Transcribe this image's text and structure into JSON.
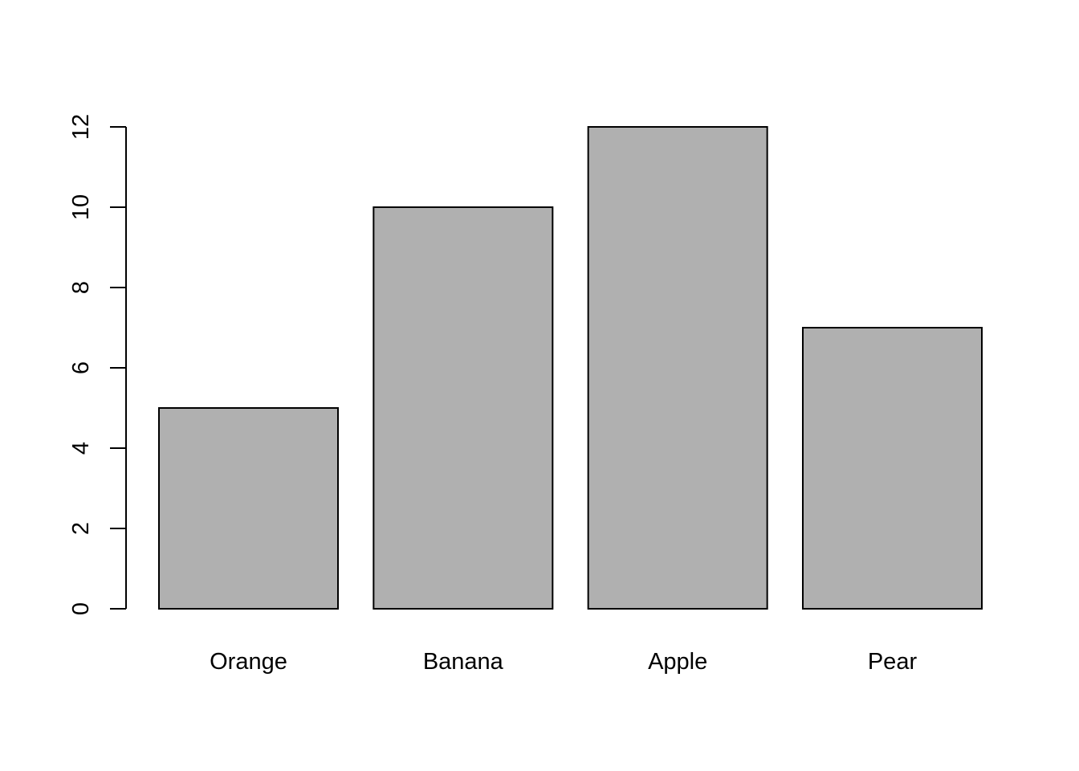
{
  "chart_data": {
    "type": "bar",
    "title": "",
    "xlabel": "",
    "ylabel": "",
    "categories": [
      "Orange",
      "Banana",
      "Apple",
      "Pear"
    ],
    "values": [
      5,
      10,
      12,
      7
    ],
    "ylim": [
      0,
      12
    ],
    "yticks": [
      0,
      2,
      4,
      6,
      8,
      10,
      12
    ],
    "grid": false,
    "legend": "none",
    "colors": {
      "bar_fill": "#b0b0b0",
      "bar_stroke": "#000000",
      "axis": "#000000",
      "background": "#ffffff"
    }
  }
}
